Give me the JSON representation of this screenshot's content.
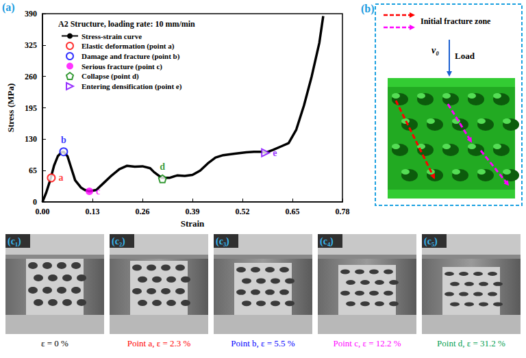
{
  "chart_data": {
    "type": "line",
    "panel_label": "(a)",
    "title": "A2 Structure, loading rate: 10 mm/min",
    "x_label": "Strain",
    "y_label": "Stress (MPa)",
    "xlim": [
      0,
      0.78
    ],
    "ylim": [
      0,
      390
    ],
    "xticks": [
      {
        "value": 0,
        "label": "0.00"
      },
      0.13,
      0.26,
      0.39,
      0.52,
      0.65,
      0.78
    ],
    "yticks": [
      0,
      65,
      130,
      195,
      260,
      325,
      390
    ],
    "grid": false,
    "legend": "upper left",
    "series": [
      {
        "name": "Stress-strain curve",
        "type": "line",
        "color": "#000000",
        "x": [
          0,
          0.01,
          0.02,
          0.03,
          0.04,
          0.05,
          0.055,
          0.065,
          0.075,
          0.085,
          0.1,
          0.11,
          0.122,
          0.14,
          0.16,
          0.18,
          0.2,
          0.22,
          0.24,
          0.26,
          0.28,
          0.29,
          0.31,
          0.33,
          0.35,
          0.37,
          0.39,
          0.41,
          0.43,
          0.45,
          0.47,
          0.5,
          0.53,
          0.55,
          0.57,
          0.58,
          0.6,
          0.62,
          0.64,
          0.66,
          0.68,
          0.7,
          0.72,
          0.73
        ],
        "values": [
          0,
          20,
          45,
          75,
          95,
          103,
          104,
          95,
          70,
          45,
          30,
          25,
          22,
          25,
          40,
          55,
          68,
          75,
          73,
          74,
          70,
          62,
          50,
          50,
          55,
          54,
          56,
          65,
          80,
          92,
          97,
          100,
          103,
          104,
          104,
          102,
          108,
          115,
          122,
          150,
          200,
          260,
          330,
          385
        ]
      },
      {
        "name": "Elastic deformation (point a)",
        "type": "scatter",
        "color": "#ff0000",
        "marker": "circle_open",
        "label": "a",
        "x": [
          0.023
        ],
        "values": [
          50
        ]
      },
      {
        "name": "Damage and fracture (point b)",
        "type": "scatter",
        "color": "#0000ff",
        "marker": "circle_open",
        "label": "b",
        "x": [
          0.055
        ],
        "values": [
          104
        ]
      },
      {
        "name": "Serious fracture (point c)",
        "type": "scatter",
        "color": "#ff00ff",
        "marker": "circle",
        "label": "c",
        "x": [
          0.122
        ],
        "values": [
          22
        ]
      },
      {
        "name": "Collapse (point d)",
        "type": "scatter",
        "color": "#008000",
        "marker": "pentagon_open",
        "label": "d",
        "x": [
          0.312
        ],
        "values": [
          48
        ]
      },
      {
        "name": "Entering densification (point e)",
        "type": "scatter",
        "color": "#8000ff",
        "marker": "triangle_right_open",
        "label": "e",
        "x": [
          0.58
        ],
        "values": [
          102
        ]
      }
    ]
  },
  "panel_b": {
    "label": "(b)",
    "legend_text": "Initial fracture zone",
    "velocity": "v₀",
    "load": "Load",
    "arrow_colors": [
      "#ff0000",
      "#ff00ff"
    ]
  },
  "panel_c": [
    {
      "label": "(c₁)",
      "caption": "ε = 0 %",
      "color": "#000000"
    },
    {
      "label": "(c₂)",
      "caption": "Point a, ε = 2.3 %",
      "color": "#ff0000"
    },
    {
      "label": "(c₃)",
      "caption": "Point b, ε = 5.5 %",
      "color": "#0000ff"
    },
    {
      "label": "(c₄)",
      "caption": "Point c, ε = 12.2 %",
      "color": "#ff00ff"
    },
    {
      "label": "(c₅)",
      "caption": "Point d, ε = 31.2 %",
      "color": "#00a050"
    }
  ]
}
